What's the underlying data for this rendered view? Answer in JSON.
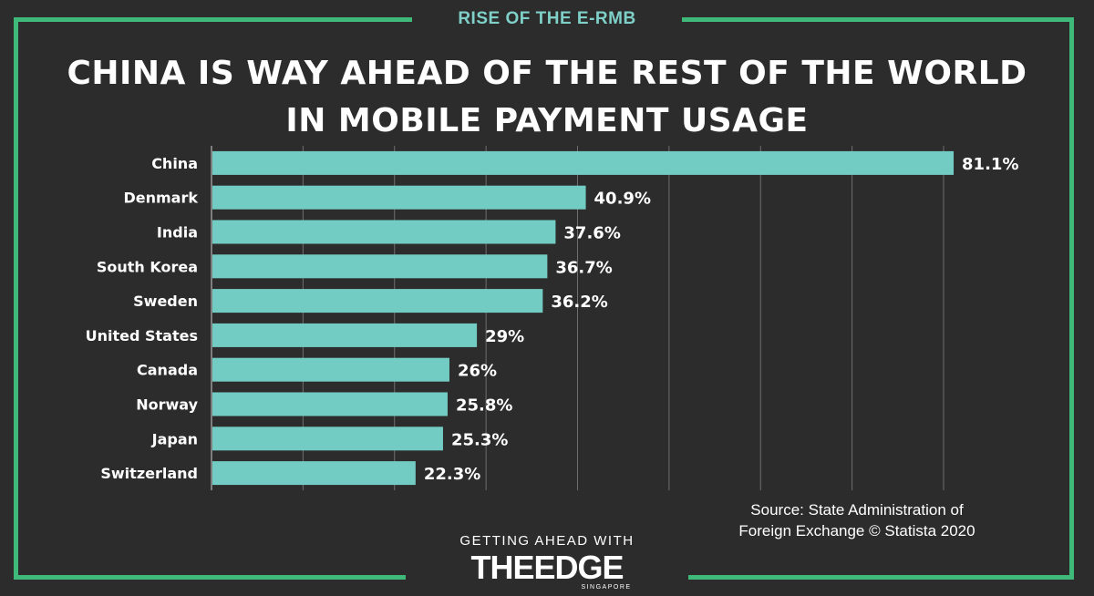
{
  "header": {
    "tag": "RISE OF THE E-RMB"
  },
  "colors": {
    "accent_frame": "#3fb97a",
    "bar": "#73ccc3",
    "tag_text": "#7fd0c8",
    "background": "#2c2c2c",
    "grid": "#6e6e6e"
  },
  "chart_data": {
    "type": "bar",
    "orientation": "horizontal",
    "title": "China is way ahead of the rest of the world in mobile payment usage",
    "categories": [
      "China",
      "Denmark",
      "India",
      "South Korea",
      "Sweden",
      "United States",
      "Canada",
      "Norway",
      "Japan",
      "Switzerland"
    ],
    "values": [
      81.1,
      40.9,
      37.6,
      36.7,
      36.2,
      29,
      26,
      25.8,
      25.3,
      22.3
    ],
    "data_labels": [
      "81.1%",
      "40.9%",
      "37.6%",
      "36.7%",
      "36.2%",
      "29%",
      "26%",
      "25.8%",
      "25.3%",
      "22.3%"
    ],
    "unit": "%",
    "xlim": [
      0,
      80
    ],
    "grid": true,
    "axis_ticks_visible": false,
    "legend": "none"
  },
  "source": {
    "line1": "Source: State Administration of",
    "line2": "Foreign Exchange © Statista 2020"
  },
  "logo": {
    "tagline": "GETTING AHEAD WITH",
    "name": "THEEDGE",
    "sub": "SINGAPORE"
  }
}
